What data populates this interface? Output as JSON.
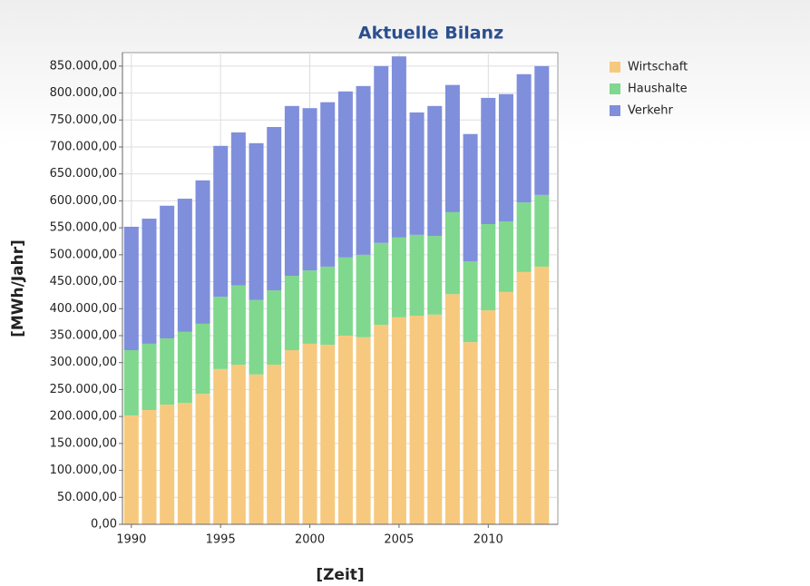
{
  "chart_data": {
    "type": "stacked_bar",
    "title": "Aktuelle Bilanz",
    "xlabel": "[Zeit]",
    "ylabel": "[MWh/Jahr]",
    "x": [
      1990,
      1991,
      1992,
      1993,
      1994,
      1995,
      1996,
      1997,
      1998,
      1999,
      2000,
      2001,
      2002,
      2003,
      2004,
      2005,
      2006,
      2007,
      2008,
      2009,
      2010,
      2011,
      2012,
      2013
    ],
    "series": [
      {
        "name": "Wirtschaft",
        "color": "#f7c97e",
        "values": [
          202000,
          212000,
          222000,
          225000,
          242000,
          288000,
          296000,
          278000,
          296000,
          323000,
          335000,
          333000,
          350000,
          347000,
          370000,
          384000,
          387000,
          389000,
          427000,
          338000,
          397000,
          431000,
          468000,
          478000
        ]
      },
      {
        "name": "Haushalte",
        "color": "#7fd88d",
        "values": [
          121000,
          123000,
          123000,
          132000,
          130000,
          134000,
          147000,
          138000,
          138000,
          138000,
          136000,
          145000,
          145000,
          153000,
          152000,
          148000,
          150000,
          146000,
          152000,
          150000,
          160000,
          131000,
          129000,
          133000
        ]
      },
      {
        "name": "Verkehr",
        "color": "#7f8fdc",
        "values": [
          229000,
          232000,
          246000,
          247000,
          266000,
          280000,
          284000,
          291000,
          303000,
          315000,
          301000,
          305000,
          308000,
          313000,
          328000,
          336000,
          227000,
          241000,
          236000,
          236000,
          234000,
          236000,
          238000,
          239000
        ]
      }
    ],
    "xlim": [
      1989.5,
      2013.9
    ],
    "xticks": [
      1990,
      1995,
      2000,
      2005,
      2010
    ],
    "ylim": [
      0,
      875000
    ],
    "yticks": [
      {
        "value": 0,
        "label": "0,00"
      },
      {
        "value": 50000,
        "label": "50.000,00"
      },
      {
        "value": 100000,
        "label": "100.000,00"
      },
      {
        "value": 150000,
        "label": "150.000,00"
      },
      {
        "value": 200000,
        "label": "200.000,00"
      },
      {
        "value": 250000,
        "label": "250.000,00"
      },
      {
        "value": 300000,
        "label": "300.000,00"
      },
      {
        "value": 350000,
        "label": "350.000,00"
      },
      {
        "value": 400000,
        "label": "400.000,00"
      },
      {
        "value": 450000,
        "label": "450.000,00"
      },
      {
        "value": 500000,
        "label": "500.000,00"
      },
      {
        "value": 550000,
        "label": "550.000,00"
      },
      {
        "value": 600000,
        "label": "600.000,00"
      },
      {
        "value": 650000,
        "label": "650.000,00"
      },
      {
        "value": 700000,
        "label": "700.000,00"
      },
      {
        "value": 750000,
        "label": "750.000,00"
      },
      {
        "value": 800000,
        "label": "800.000,00"
      },
      {
        "value": 850000,
        "label": "850.000,00"
      }
    ],
    "grid": true,
    "legend": "right"
  }
}
